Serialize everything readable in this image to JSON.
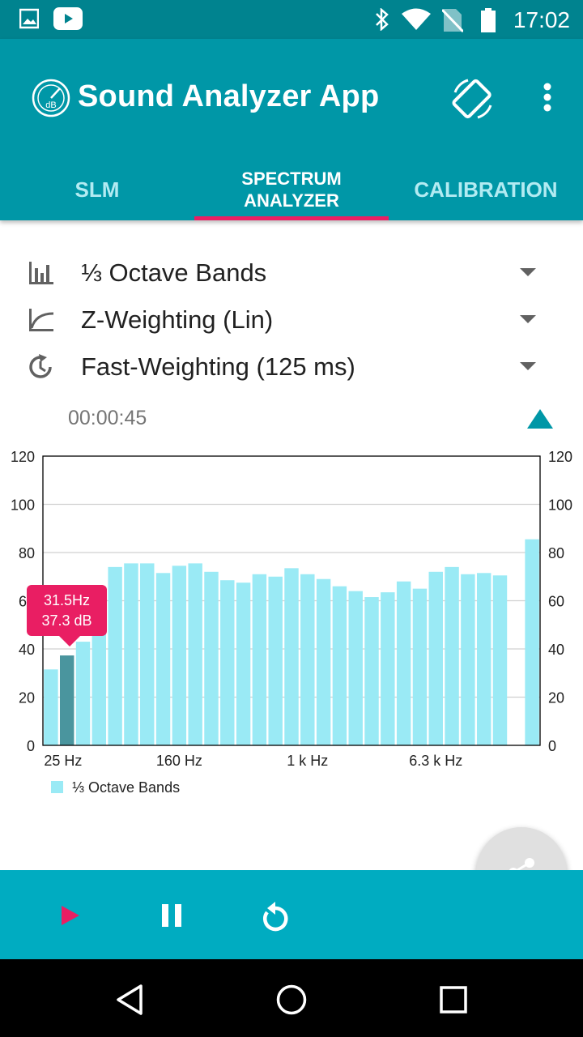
{
  "status_bar": {
    "time": "17:02",
    "icons": [
      "image-icon",
      "youtube-icon",
      "bluetooth-icon",
      "wifi-icon",
      "no-sim-icon",
      "battery-icon"
    ]
  },
  "app_bar": {
    "title": "Sound Analyzer App",
    "logo_text": "dB",
    "icons": [
      "app-logo-icon",
      "screen-rotation-icon",
      "more-vert-icon"
    ],
    "tabs": [
      {
        "label": "SLM",
        "active": false
      },
      {
        "label": "SPECTRUM\nANALYZER",
        "active": true
      },
      {
        "label": "CALIBRATION",
        "active": false
      }
    ]
  },
  "settings": {
    "band": {
      "label": "⅓ Octave Bands",
      "icon": "bar-chart-icon"
    },
    "frequency_weighting": {
      "label": "Z-Weighting (Lin)",
      "icon": "curve-icon"
    },
    "time_weighting": {
      "label": "Fast-Weighting (125 ms)",
      "icon": "history-icon"
    }
  },
  "elapsed_time": "00:00:45",
  "tooltip": {
    "line1": "31.5Hz",
    "line2": "37.3 dB"
  },
  "chart_data": {
    "type": "bar",
    "series": [
      {
        "name": "⅓ Octave Bands",
        "values": [
          31.5,
          37.3,
          43,
          54,
          74,
          75.5,
          75.5,
          71.5,
          74.5,
          75.5,
          72,
          68.5,
          67.5,
          71,
          70,
          73.5,
          71,
          69,
          66,
          64,
          61.5,
          63.5,
          68,
          65,
          72,
          74,
          71,
          71.5,
          70.5,
          0,
          85.5
        ],
        "highlighted_index": 1
      }
    ],
    "ylim": [
      0,
      120
    ],
    "yticks": [
      0,
      20,
      40,
      60,
      80,
      100,
      120
    ],
    "xtick_labels": [
      {
        "index": 0,
        "label": "25 Hz"
      },
      {
        "index": 8,
        "label": "160 Hz"
      },
      {
        "index": 16,
        "label": "1 k Hz"
      },
      {
        "index": 24,
        "label": "6.3 k Hz"
      }
    ],
    "grid": true,
    "legend": "bottom-left",
    "colors": {
      "bar": "#9aeaf5",
      "highlight": "#4a959e",
      "axis": "#000000",
      "grid": "#d0d0d0"
    }
  },
  "controls": {
    "icons": [
      "play-icon",
      "pause-icon",
      "replay-icon"
    ],
    "play_color": "#e91e63"
  },
  "share_icon": "share-icon",
  "nav_bar": {
    "icons": [
      "back-icon",
      "home-icon",
      "recents-icon"
    ]
  },
  "colors": {
    "status_bar": "#00838f",
    "app_bar": "#0097a7",
    "accent": "#e91e63",
    "controls_bar": "#00acc1"
  }
}
